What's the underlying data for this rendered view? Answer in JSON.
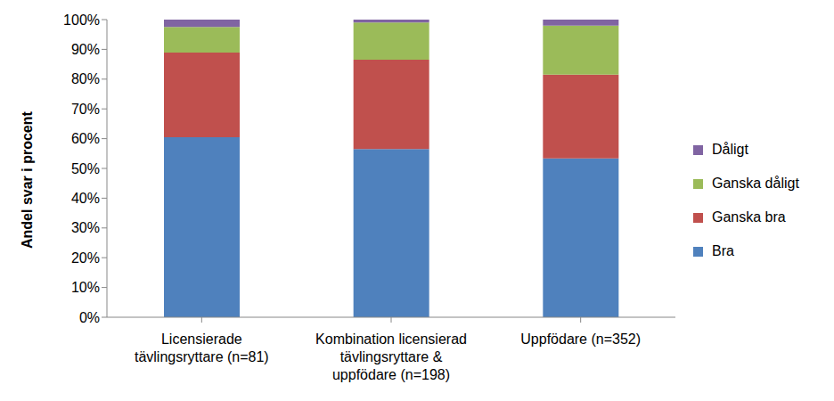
{
  "chart_data": {
    "type": "bar",
    "stacked": true,
    "y_label": "Andel svar i procent",
    "categories": [
      "Licensierade tävlingsryttare (n=81)",
      "Kombination licensierad tävlingsryttare & uppfödare (n=198)",
      "Uppfödare (n=352)"
    ],
    "series": [
      {
        "name": "Bra",
        "color": "#4f81bd",
        "values": [
          60.5,
          56.5,
          53.4
        ]
      },
      {
        "name": "Ganska bra",
        "color": "#c0504d",
        "values": [
          28.4,
          30.0,
          28.1
        ]
      },
      {
        "name": "Ganska dåligt",
        "color": "#9bbb59",
        "values": [
          8.6,
          12.5,
          16.5
        ]
      },
      {
        "name": "Dåligt",
        "color": "#8064a2",
        "values": [
          2.5,
          1.0,
          2.0
        ]
      }
    ],
    "ylim": [
      0,
      100
    ],
    "yticks": [
      {
        "value": 0,
        "label": "0%"
      },
      {
        "value": 10,
        "label": "10%"
      },
      {
        "value": 20,
        "label": "20%"
      },
      {
        "value": 30,
        "label": "30%"
      },
      {
        "value": 40,
        "label": "40%"
      },
      {
        "value": 50,
        "label": "50%"
      },
      {
        "value": 60,
        "label": "60%"
      },
      {
        "value": 70,
        "label": "70%"
      },
      {
        "value": 80,
        "label": "80%"
      },
      {
        "value": 90,
        "label": "90%"
      },
      {
        "value": 100,
        "label": "100%"
      }
    ],
    "grid": false,
    "legend": "right"
  }
}
